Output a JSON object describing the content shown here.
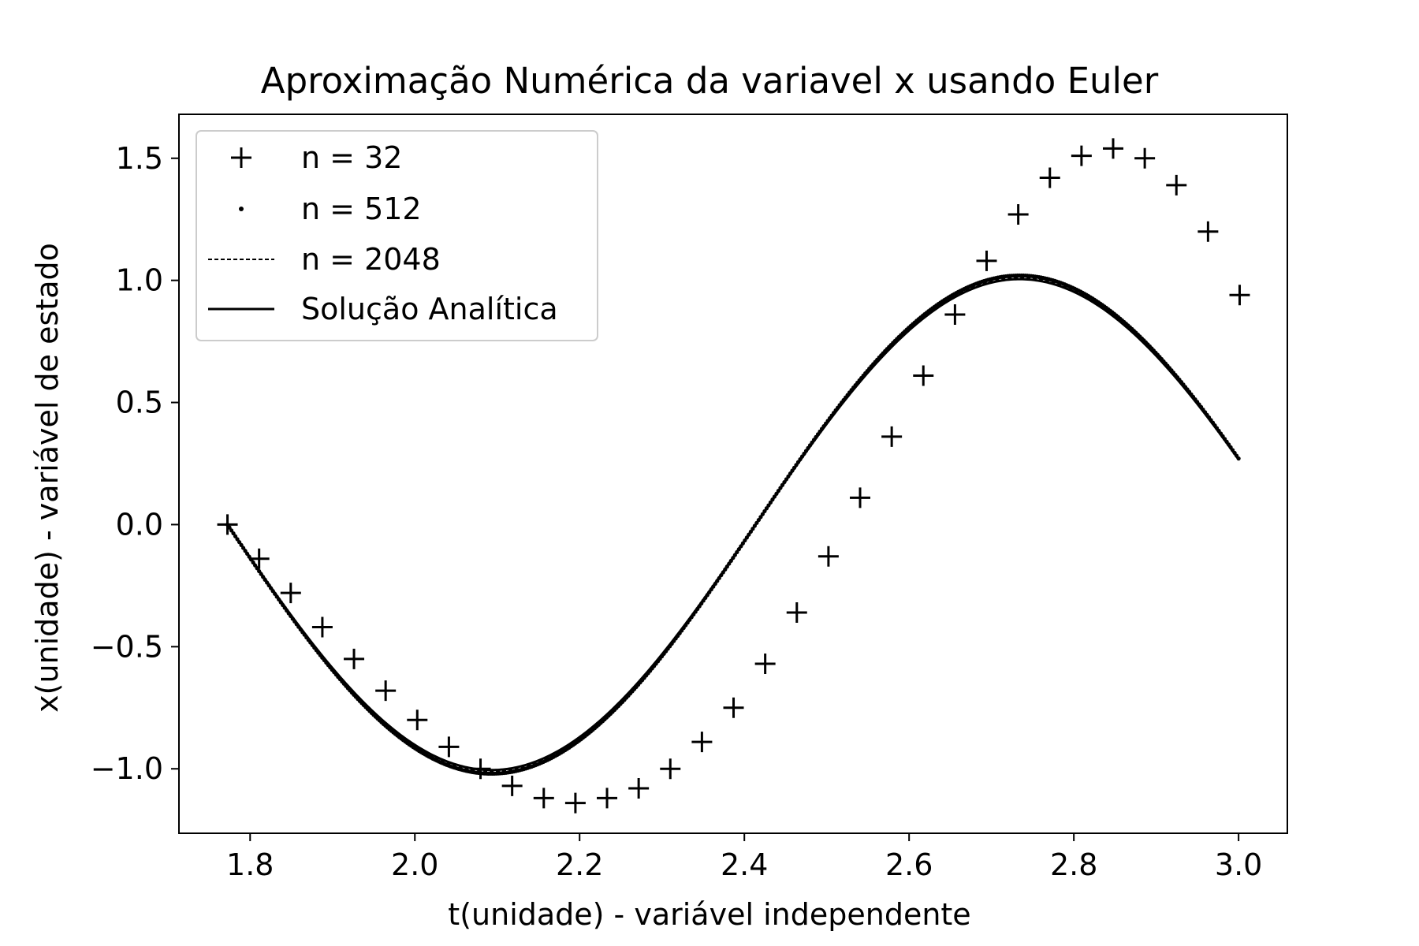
{
  "chart_data": {
    "type": "line",
    "title": "Aproximação Numérica da variavel x usando Euler",
    "xlabel": "t(unidade) - variável independente",
    "ylabel": "x(unidade) - variável de estado",
    "xlim": [
      1.7136,
      3.0592
    ],
    "ylim": [
      -1.264,
      1.68
    ],
    "x_ticks": [
      {
        "value": 1.8,
        "label": "1.8"
      },
      {
        "value": 2.0,
        "label": "2.0"
      },
      {
        "value": 2.2,
        "label": "2.2"
      },
      {
        "value": 2.4,
        "label": "2.4"
      },
      {
        "value": 2.6,
        "label": "2.6"
      },
      {
        "value": 2.8,
        "label": "2.8"
      },
      {
        "value": 3.0,
        "label": "3.0"
      }
    ],
    "y_ticks": [
      {
        "value": -1.0,
        "label": "−1.0"
      },
      {
        "value": -0.5,
        "label": "−0.5"
      },
      {
        "value": 0.0,
        "label": "0.0"
      },
      {
        "value": 0.5,
        "label": "0.5"
      },
      {
        "value": 1.0,
        "label": "1.0"
      },
      {
        "value": 1.5,
        "label": "1.5"
      }
    ],
    "grid": false,
    "legend_position": "top-left",
    "series": [
      {
        "name": "n = 32",
        "style": "plus-markers",
        "color": "#000000",
        "points": [
          [
            1.7725,
            0.0
          ],
          [
            1.8109,
            -0.14
          ],
          [
            1.8493,
            -0.28
          ],
          [
            1.8877,
            -0.42
          ],
          [
            1.9261,
            -0.55
          ],
          [
            1.9645,
            -0.68
          ],
          [
            2.0029,
            -0.8
          ],
          [
            2.0413,
            -0.91
          ],
          [
            2.0797,
            -1.0
          ],
          [
            2.1181,
            -1.07
          ],
          [
            2.1565,
            -1.12
          ],
          [
            2.1949,
            -1.14
          ],
          [
            2.2333,
            -1.12
          ],
          [
            2.2717,
            -1.08
          ],
          [
            2.3101,
            -1.0
          ],
          [
            2.3485,
            -0.89
          ],
          [
            2.3869,
            -0.75
          ],
          [
            2.4253,
            -0.57
          ],
          [
            2.4637,
            -0.36
          ],
          [
            2.5021,
            -0.13
          ],
          [
            2.5405,
            0.11
          ],
          [
            2.5789,
            0.36
          ],
          [
            2.6173,
            0.61
          ],
          [
            2.6557,
            0.86
          ],
          [
            2.6941,
            1.08
          ],
          [
            2.7325,
            1.27
          ],
          [
            2.7709,
            1.42
          ],
          [
            2.8093,
            1.51
          ],
          [
            2.8477,
            1.54
          ],
          [
            2.8861,
            1.5
          ],
          [
            2.9245,
            1.39
          ],
          [
            2.9629,
            1.2
          ],
          [
            3.0013,
            0.94
          ]
        ]
      },
      {
        "name": "n = 512",
        "style": "point-markers",
        "color": "#000000",
        "x_start": 1.7725,
        "x_end": 3.0,
        "count": 513,
        "amplitude": 1.02,
        "omega": 4.9,
        "decay": 0.0,
        "phase_shift": 0.0
      },
      {
        "name": "n = 2048",
        "style": "dashed-line",
        "color": "#000000",
        "x_start": 1.7725,
        "x_end": 3.0,
        "count": 2049,
        "amplitude": 1.012,
        "omega": 4.9,
        "decay": 0.0,
        "phase_shift": 0.0
      },
      {
        "name": "Solução Analítica",
        "style": "solid-line",
        "color": "#000000",
        "x_start": 1.7725,
        "x_end": 3.0,
        "count": 600,
        "amplitude": 1.005,
        "omega": 4.9,
        "decay": 0.0,
        "phase_shift": 0.0
      }
    ]
  }
}
